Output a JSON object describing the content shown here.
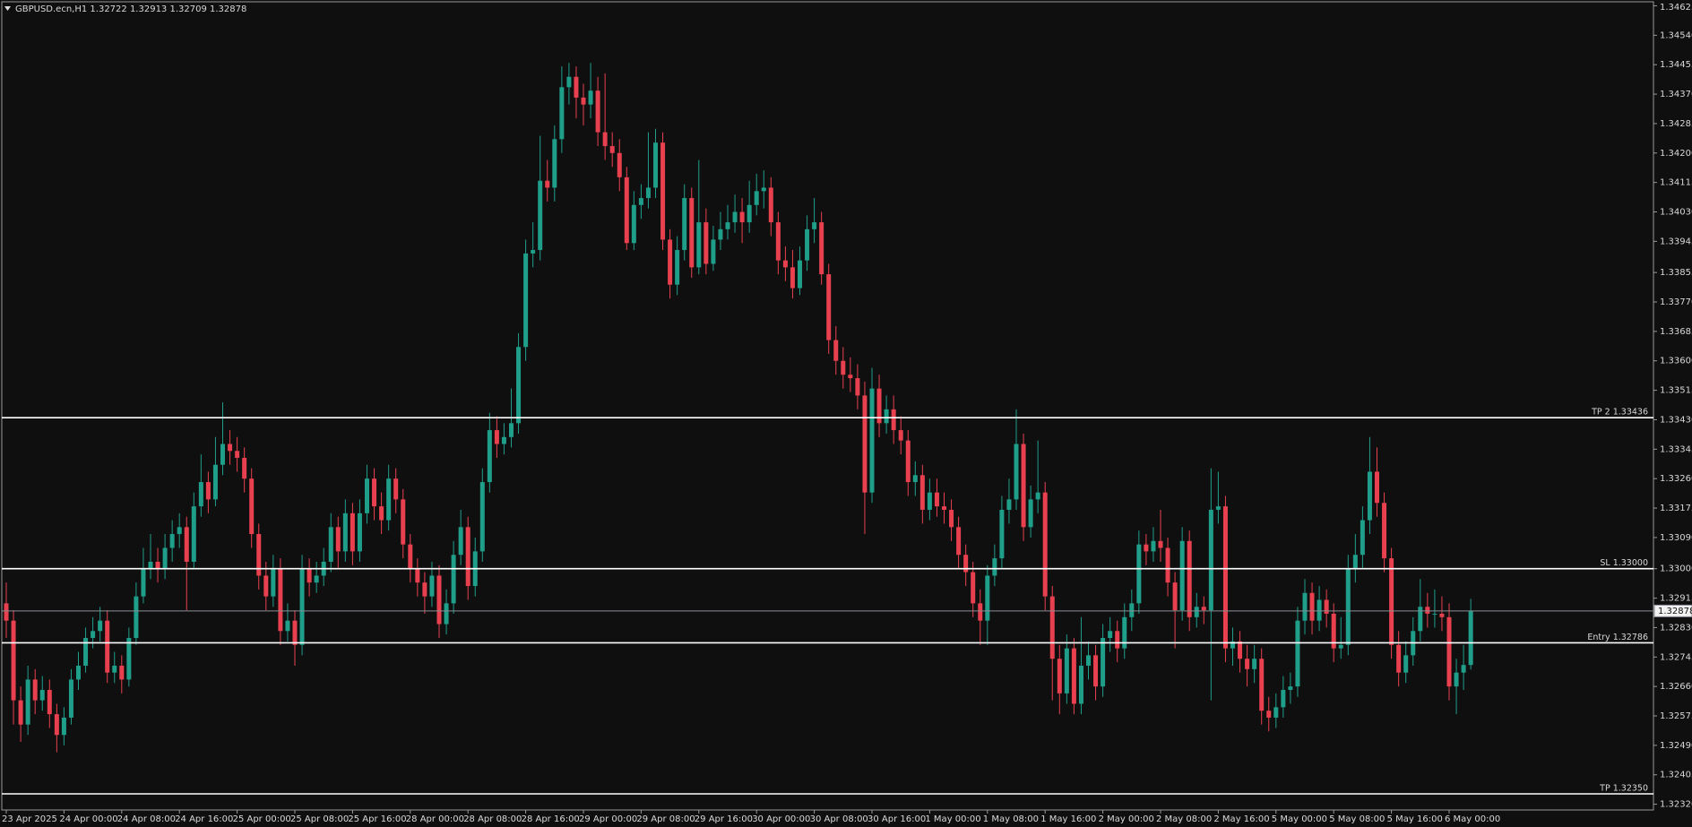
{
  "chart_data": {
    "type": "candlestick",
    "title": "GBPUSD.ecn,H1  1.32722 1.32913 1.32709 1.32878",
    "up_color": "#1f9e8a",
    "down_color": "#e8404f",
    "categories": [
      "23 Apr 2025",
      null,
      null,
      null,
      null,
      null,
      null,
      null,
      "24 Apr 00:00",
      null,
      null,
      null,
      null,
      null,
      null,
      null,
      "24 Apr 08:00",
      null,
      null,
      null,
      null,
      null,
      null,
      null,
      "24 Apr 16:00",
      null,
      null,
      null,
      null,
      null,
      null,
      null,
      "25 Apr 00:00",
      null,
      null,
      null,
      null,
      null,
      null,
      null,
      "25 Apr 08:00",
      null,
      null,
      null,
      null,
      null,
      null,
      null,
      "25 Apr 16:00",
      null,
      null,
      null,
      null,
      null,
      null,
      null,
      "28 Apr 00:00",
      null,
      null,
      null,
      null,
      null,
      null,
      null,
      "28 Apr 08:00",
      null,
      null,
      null,
      null,
      null,
      null,
      null,
      "28 Apr 16:00",
      null,
      null,
      null,
      null,
      null,
      null,
      null,
      "29 Apr 00:00",
      null,
      null,
      null,
      null,
      null,
      null,
      null,
      "29 Apr 08:00",
      null,
      null,
      null,
      null,
      null,
      null,
      null,
      "29 Apr 16:00",
      null,
      null,
      null,
      null,
      null,
      null,
      null,
      "30 Apr 00:00",
      null,
      null,
      null,
      null,
      null,
      null,
      null,
      "30 Apr 08:00",
      null,
      null,
      null,
      null,
      null,
      null,
      null,
      "30 Apr 16:00",
      null,
      null,
      null,
      null,
      null,
      null,
      null,
      "1 May 00:00",
      null,
      null,
      null,
      null,
      null,
      null,
      null,
      "1 May 08:00",
      null,
      null,
      null,
      null,
      null,
      null,
      null,
      "1 May 16:00",
      null,
      null,
      null,
      null,
      null,
      null,
      null,
      "2 May 00:00",
      null,
      null,
      null,
      null,
      null,
      null,
      null,
      "2 May 08:00",
      null,
      null,
      null,
      null,
      null,
      null,
      null,
      "2 May 16:00",
      null,
      null,
      null,
      null,
      null,
      null,
      null,
      "5 May 00:00",
      null,
      null,
      null,
      null,
      null,
      null,
      null,
      "5 May 08:00",
      null,
      null,
      null,
      null,
      null,
      null,
      null,
      "5 May 16:00",
      null,
      null,
      null,
      null,
      null,
      null,
      null,
      "6 May 00:00",
      null,
      null,
      null
    ],
    "open": [
      1.329,
      1.3285,
      1.3262,
      1.3255,
      1.3268,
      1.3262,
      1.3265,
      1.3258,
      1.3252,
      1.3257,
      1.3268,
      1.3272,
      1.328,
      1.3282,
      1.3285,
      1.327,
      1.3272,
      1.3268,
      1.328,
      1.3292,
      1.33,
      1.3302,
      1.33,
      1.3306,
      1.331,
      1.3312,
      1.3302,
      1.3318,
      1.3325,
      1.332,
      1.333,
      1.3336,
      1.3334,
      1.3332,
      1.3326,
      1.331,
      1.3298,
      1.3292,
      1.33,
      1.3282,
      1.3285,
      1.3278,
      1.33,
      1.3296,
      1.3298,
      1.3302,
      1.3312,
      1.3305,
      1.3316,
      1.3305,
      1.3316,
      1.3326,
      1.3318,
      1.3314,
      1.3326,
      1.332,
      1.3307,
      1.33,
      1.3296,
      1.3292,
      1.3298,
      1.3284,
      1.329,
      1.3304,
      1.3312,
      1.3295,
      1.3305,
      1.3325,
      1.334,
      1.3336,
      1.3338,
      1.3342,
      1.3364,
      1.3391,
      1.3392,
      1.3412,
      1.341,
      1.3424,
      1.3439,
      1.3442,
      1.3436,
      1.3434,
      1.3438,
      1.3426,
      1.3422,
      1.342,
      1.3413,
      1.3394,
      1.3405,
      1.3407,
      1.341,
      1.3423,
      1.3395,
      1.3382,
      1.3392,
      1.3407,
      1.3387,
      1.34,
      1.3388,
      1.3395,
      1.3398,
      1.34,
      1.3403,
      1.34,
      1.3405,
      1.3409,
      1.341,
      1.34,
      1.3389,
      1.3387,
      1.3381,
      1.3389,
      1.3398,
      1.34,
      1.3385,
      1.3366,
      1.336,
      1.3356,
      1.3355,
      1.335,
      1.3322,
      1.3352,
      1.3342,
      1.3346,
      1.334,
      1.3337,
      1.3325,
      1.3327,
      1.3317,
      1.3322,
      1.3318,
      1.3317,
      1.3312,
      1.3304,
      1.3299,
      1.329,
      1.3285,
      1.3298,
      1.3303,
      1.3317,
      1.332,
      1.3336,
      1.3312,
      1.332,
      1.3322,
      1.3292,
      1.3274,
      1.3264,
      1.3277,
      1.3261,
      1.3272,
      1.3275,
      1.3266,
      1.328,
      1.3282,
      1.3277,
      1.3286,
      1.329,
      1.3307,
      1.3305,
      1.3308,
      1.3306,
      1.3296,
      1.3288,
      1.3308,
      1.3286,
      1.3289,
      1.3288,
      1.3317,
      1.3318,
      1.3277,
      1.3279,
      1.3274,
      1.3271,
      1.3274,
      1.3259,
      1.3257,
      1.326,
      1.3265,
      1.3266,
      1.3285,
      1.3293,
      1.3285,
      1.3291,
      1.3287,
      1.3277,
      1.3278,
      1.33,
      1.3304,
      1.3314,
      1.3328,
      1.3319,
      1.3303,
      1.3278,
      1.327,
      1.3275,
      1.3282,
      1.3289,
      1.3287,
      1.3287,
      1.3286,
      1.3266,
      1.327,
      1.32722
    ],
    "high": [
      1.3296,
      1.3288,
      1.3266,
      1.3272,
      1.3271,
      1.3269,
      1.3268,
      1.3261,
      1.326,
      1.3271,
      1.3276,
      1.3283,
      1.3286,
      1.3289,
      1.3288,
      1.3276,
      1.3275,
      1.3283,
      1.3296,
      1.3306,
      1.331,
      1.3306,
      1.331,
      1.3314,
      1.3316,
      1.3315,
      1.3322,
      1.3333,
      1.3328,
      1.3338,
      1.3348,
      1.334,
      1.3338,
      1.3335,
      1.3329,
      1.3313,
      1.3302,
      1.3304,
      1.3303,
      1.329,
      1.3288,
      1.3304,
      1.3303,
      1.3302,
      1.3306,
      1.3316,
      1.3315,
      1.332,
      1.3319,
      1.332,
      1.333,
      1.3329,
      1.3322,
      1.333,
      1.3329,
      1.3323,
      1.331,
      1.3303,
      1.3299,
      1.3302,
      1.3301,
      1.3294,
      1.3308,
      1.3317,
      1.3315,
      1.3309,
      1.3329,
      1.3345,
      1.3344,
      1.3342,
      1.3352,
      1.3368,
      1.3395,
      1.34,
      1.3425,
      1.3418,
      1.3428,
      1.3445,
      1.3446,
      1.3445,
      1.344,
      1.3446,
      1.3442,
      1.3443,
      1.3426,
      1.3424,
      1.3416,
      1.3409,
      1.3411,
      1.3426,
      1.3427,
      1.3426,
      1.3398,
      1.3396,
      1.3411,
      1.341,
      1.3418,
      1.3404,
      1.3399,
      1.3403,
      1.3405,
      1.3408,
      1.3407,
      1.3412,
      1.3414,
      1.3415,
      1.3413,
      1.3403,
      1.3393,
      1.3392,
      1.3393,
      1.3402,
      1.3407,
      1.3403,
      1.3388,
      1.337,
      1.3364,
      1.3361,
      1.3359,
      1.3354,
      1.3358,
      1.3356,
      1.335,
      1.335,
      1.3344,
      1.334,
      1.3331,
      1.333,
      1.3326,
      1.3326,
      1.3322,
      1.332,
      1.3315,
      1.3307,
      1.3302,
      1.3294,
      1.3301,
      1.3307,
      1.3321,
      1.3326,
      1.3346,
      1.3339,
      1.3324,
      1.3337,
      1.3325,
      1.3295,
      1.3278,
      1.3281,
      1.328,
      1.3286,
      1.3279,
      1.3278,
      1.3284,
      1.3286,
      1.3285,
      1.329,
      1.3294,
      1.3311,
      1.331,
      1.3312,
      1.3317,
      1.3309,
      1.3299,
      1.3312,
      1.3311,
      1.3293,
      1.3292,
      1.3329,
      1.3328,
      1.3321,
      1.3283,
      1.3282,
      1.3278,
      1.3278,
      1.3277,
      1.3263,
      1.3264,
      1.3269,
      1.327,
      1.3289,
      1.3297,
      1.3296,
      1.3295,
      1.3294,
      1.329,
      1.3286,
      1.3304,
      1.331,
      1.3318,
      1.3338,
      1.3335,
      1.3322,
      1.3306,
      1.3282,
      1.3279,
      1.3286,
      1.3297,
      1.3293,
      1.3294,
      1.3292,
      1.329,
      1.3274,
      1.3278,
      1.32913
    ],
    "low": [
      1.328,
      1.3255,
      1.325,
      1.3252,
      1.3258,
      1.3259,
      1.3254,
      1.3247,
      1.3249,
      1.3255,
      1.3265,
      1.327,
      1.3277,
      1.3279,
      1.3267,
      1.3267,
      1.3264,
      1.3266,
      1.3278,
      1.329,
      1.3297,
      1.3296,
      1.3297,
      1.3302,
      1.3306,
      1.3288,
      1.33,
      1.3315,
      1.3316,
      1.3318,
      1.3327,
      1.333,
      1.3328,
      1.3322,
      1.3306,
      1.3294,
      1.3288,
      1.3289,
      1.3278,
      1.3279,
      1.3272,
      1.3275,
      1.3292,
      1.3293,
      1.3295,
      1.3299,
      1.33,
      1.3302,
      1.3301,
      1.3302,
      1.3313,
      1.3314,
      1.331,
      1.3311,
      1.3316,
      1.3303,
      1.3296,
      1.3292,
      1.3287,
      1.3289,
      1.328,
      1.3281,
      1.3287,
      1.3301,
      1.3291,
      1.3292,
      1.3302,
      1.3322,
      1.3332,
      1.3333,
      1.3335,
      1.3339,
      1.336,
      1.3387,
      1.3389,
      1.3406,
      1.3406,
      1.342,
      1.3434,
      1.343,
      1.3428,
      1.343,
      1.3422,
      1.3418,
      1.3416,
      1.3409,
      1.3392,
      1.3392,
      1.3401,
      1.3404,
      1.3407,
      1.3392,
      1.3378,
      1.3379,
      1.3389,
      1.3384,
      1.3385,
      1.3385,
      1.3386,
      1.3392,
      1.3395,
      1.3397,
      1.3394,
      1.3397,
      1.3402,
      1.3404,
      1.3396,
      1.3385,
      1.3383,
      1.3378,
      1.3379,
      1.3386,
      1.3394,
      1.3382,
      1.3362,
      1.3356,
      1.3352,
      1.3351,
      1.3346,
      1.331,
      1.3319,
      1.3338,
      1.3339,
      1.3336,
      1.3333,
      1.3321,
      1.3321,
      1.3313,
      1.3314,
      1.3315,
      1.3313,
      1.3308,
      1.33,
      1.3295,
      1.3286,
      1.3278,
      1.3278,
      1.3295,
      1.33,
      1.3313,
      1.3317,
      1.3308,
      1.3309,
      1.3316,
      1.3288,
      1.3262,
      1.3258,
      1.3261,
      1.3258,
      1.3258,
      1.3268,
      1.3262,
      1.3263,
      1.3276,
      1.3273,
      1.3274,
      1.3282,
      1.3287,
      1.3301,
      1.3302,
      1.3302,
      1.3292,
      1.3277,
      1.3285,
      1.3282,
      1.3283,
      1.3284,
      1.3262,
      1.3313,
      1.3273,
      1.3272,
      1.327,
      1.3266,
      1.3267,
      1.3255,
      1.3253,
      1.3254,
      1.3257,
      1.3261,
      1.3263,
      1.3281,
      1.3281,
      1.3282,
      1.3283,
      1.3273,
      1.3274,
      1.3275,
      1.3296,
      1.33,
      1.331,
      1.3315,
      1.3299,
      1.3274,
      1.3266,
      1.3267,
      1.3272,
      1.3279,
      1.3283,
      1.3283,
      1.3282,
      1.3262,
      1.3258,
      1.3265,
      1.32709
    ],
    "close": [
      1.3285,
      1.3262,
      1.3255,
      1.3268,
      1.3262,
      1.3265,
      1.3258,
      1.3252,
      1.3257,
      1.3268,
      1.3272,
      1.328,
      1.3282,
      1.3285,
      1.327,
      1.3272,
      1.3268,
      1.328,
      1.3292,
      1.33,
      1.3302,
      1.33,
      1.3306,
      1.331,
      1.3312,
      1.3302,
      1.3318,
      1.3325,
      1.332,
      1.333,
      1.3336,
      1.3334,
      1.3332,
      1.3326,
      1.331,
      1.3298,
      1.3292,
      1.33,
      1.3282,
      1.3285,
      1.3278,
      1.33,
      1.3296,
      1.3298,
      1.3302,
      1.3312,
      1.3305,
      1.3316,
      1.3305,
      1.3316,
      1.3326,
      1.3318,
      1.3314,
      1.3326,
      1.332,
      1.3307,
      1.33,
      1.3296,
      1.3292,
      1.3298,
      1.3284,
      1.329,
      1.3304,
      1.3312,
      1.3295,
      1.3305,
      1.3325,
      1.334,
      1.3336,
      1.3338,
      1.3342,
      1.3364,
      1.3391,
      1.3392,
      1.3412,
      1.341,
      1.3424,
      1.3439,
      1.3442,
      1.3436,
      1.3434,
      1.3438,
      1.3426,
      1.3422,
      1.342,
      1.3413,
      1.3394,
      1.3405,
      1.3407,
      1.341,
      1.3423,
      1.3395,
      1.3382,
      1.3392,
      1.3407,
      1.3387,
      1.34,
      1.3388,
      1.3395,
      1.3398,
      1.34,
      1.3403,
      1.34,
      1.3405,
      1.3409,
      1.341,
      1.34,
      1.3389,
      1.3387,
      1.3381,
      1.3389,
      1.3398,
      1.34,
      1.3385,
      1.3366,
      1.336,
      1.3356,
      1.3355,
      1.335,
      1.3322,
      1.3352,
      1.3342,
      1.3346,
      1.334,
      1.3337,
      1.3325,
      1.3327,
      1.3317,
      1.3322,
      1.3318,
      1.3317,
      1.3312,
      1.3304,
      1.3299,
      1.329,
      1.3285,
      1.3298,
      1.3303,
      1.3317,
      1.332,
      1.3336,
      1.3312,
      1.332,
      1.3322,
      1.3292,
      1.3274,
      1.3264,
      1.3277,
      1.3261,
      1.3272,
      1.3275,
      1.3266,
      1.328,
      1.3282,
      1.3277,
      1.3286,
      1.329,
      1.3307,
      1.3305,
      1.3308,
      1.3306,
      1.3296,
      1.3288,
      1.3308,
      1.3286,
      1.3289,
      1.3288,
      1.3317,
      1.3318,
      1.3277,
      1.3279,
      1.3274,
      1.3271,
      1.3274,
      1.3259,
      1.3257,
      1.326,
      1.3265,
      1.3266,
      1.3285,
      1.3293,
      1.3285,
      1.3291,
      1.3287,
      1.3277,
      1.3278,
      1.33,
      1.3304,
      1.3314,
      1.3328,
      1.3319,
      1.3303,
      1.3278,
      1.327,
      1.3275,
      1.3282,
      1.3289,
      1.3287,
      1.3287,
      1.3286,
      1.3266,
      1.327,
      1.32722,
      1.32878
    ],
    "ylim": [
      1.32306,
      1.34634
    ],
    "yticks": [
      1.34625,
      {
        "value": 1.3454,
        "label": "1.34540"
      },
      1.34455,
      {
        "value": 1.3437,
        "label": "1.34370"
      },
      1.34285,
      {
        "value": 1.342,
        "label": "1.34200"
      },
      1.34115,
      {
        "value": 1.3403,
        "label": "1.34030"
      },
      1.33945,
      1.33855,
      {
        "value": 1.3377,
        "label": "1.33770"
      },
      1.33685,
      {
        "value": 1.336,
        "label": "1.33600"
      },
      1.33515,
      {
        "value": 1.3343,
        "label": "1.33430"
      },
      1.33345,
      {
        "value": 1.3326,
        "label": "1.33260"
      },
      1.33175,
      {
        "value": 1.3309,
        "label": "1.33090"
      },
      {
        "value": 1.33,
        "label": "1.33000"
      },
      1.32915,
      {
        "value": 1.3283,
        "label": "1.32830"
      },
      1.32745,
      {
        "value": 1.3266,
        "label": "1.32660"
      },
      1.32575,
      {
        "value": 1.3249,
        "label": "1.32490"
      },
      1.32405,
      {
        "value": 1.3232,
        "label": "1.32320"
      }
    ],
    "levels": [
      {
        "label": "TP 2 1.33436",
        "value": 1.33436,
        "color": "#ffffff"
      },
      {
        "label": "SL 1.33000",
        "value": 1.33,
        "color": "#ffffff"
      },
      {
        "label": "Entry 1.32786",
        "value": 1.32786,
        "color": "#ffffff"
      },
      {
        "label": "TP 1.32350",
        "value": 1.3235,
        "color": "#ffffff"
      }
    ],
    "last_price": {
      "value": 1.32878,
      "color": "#8a8f96"
    }
  }
}
